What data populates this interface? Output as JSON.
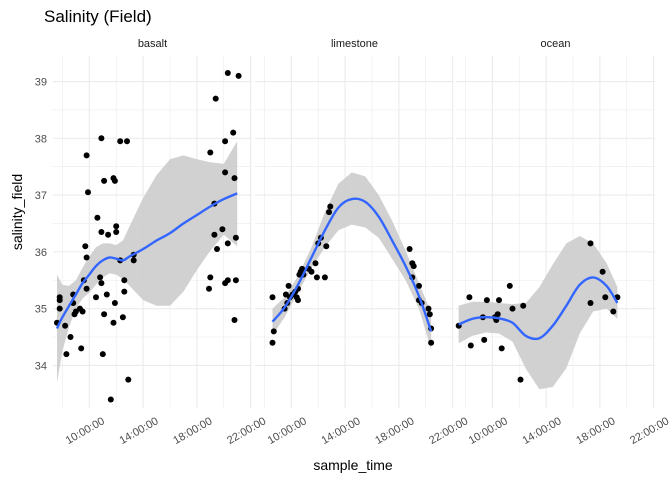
{
  "chart_data": {
    "type": "scatter",
    "title": "Salinity (Field)",
    "xlabel": "sample_time",
    "ylabel": "salinity_field",
    "facets": [
      "basalt",
      "limestone",
      "ocean"
    ],
    "x_ticks": [
      "10:00:00",
      "14:00:00",
      "18:00:00",
      "22:00:00"
    ],
    "x_tick_hours": [
      10,
      14,
      18,
      22
    ],
    "x_range_hours": [
      7.3,
      22.1
    ],
    "y_ticks": [
      34,
      35,
      36,
      37,
      38,
      39
    ],
    "ylim": [
      33.25,
      39.45
    ],
    "grid": true,
    "smooth": "loess with confidence band",
    "colors": {
      "points": "#000000",
      "smooth_line": "#3366FF",
      "band": "#CCCCCC",
      "grid": "#EBEBEB"
    },
    "panels": [
      {
        "name": "basalt",
        "points": [
          [
            7.6,
            34.75
          ],
          [
            7.8,
            35.2
          ],
          [
            7.8,
            35.0
          ],
          [
            7.8,
            35.15
          ],
          [
            8.2,
            34.7
          ],
          [
            8.6,
            34.5
          ],
          [
            8.3,
            34.2
          ],
          [
            8.8,
            35.25
          ],
          [
            8.8,
            35.1
          ],
          [
            8.9,
            34.9
          ],
          [
            9.0,
            34.95
          ],
          [
            9.3,
            35.0
          ],
          [
            9.4,
            34.3
          ],
          [
            9.5,
            34.95
          ],
          [
            9.6,
            35.5
          ],
          [
            9.8,
            35.35
          ],
          [
            9.7,
            36.1
          ],
          [
            9.8,
            35.9
          ],
          [
            9.8,
            37.7
          ],
          [
            9.9,
            37.05
          ],
          [
            10.5,
            35.2
          ],
          [
            10.6,
            36.6
          ],
          [
            10.8,
            35.55
          ],
          [
            10.9,
            35.45
          ],
          [
            10.9,
            36.35
          ],
          [
            10.9,
            38.0
          ],
          [
            11.1,
            37.25
          ],
          [
            11.3,
            35.25
          ],
          [
            11.4,
            36.3
          ],
          [
            11.1,
            34.9
          ],
          [
            11.0,
            34.2
          ],
          [
            11.8,
            37.3
          ],
          [
            11.9,
            37.25
          ],
          [
            12.0,
            36.45
          ],
          [
            12.0,
            36.35
          ],
          [
            11.9,
            35.1
          ],
          [
            11.6,
            33.4
          ],
          [
            11.8,
            34.75
          ],
          [
            12.3,
            37.95
          ],
          [
            12.3,
            35.85
          ],
          [
            12.6,
            35.3
          ],
          [
            12.6,
            35.5
          ],
          [
            12.5,
            34.85
          ],
          [
            12.9,
            33.75
          ],
          [
            12.8,
            37.95
          ],
          [
            13.3,
            35.85
          ],
          [
            13.3,
            35.95
          ],
          [
            18.9,
            35.35
          ],
          [
            19.0,
            35.55
          ],
          [
            19.0,
            37.75
          ],
          [
            19.3,
            36.85
          ],
          [
            19.3,
            36.3
          ],
          [
            19.5,
            36.05
          ],
          [
            19.4,
            38.7
          ],
          [
            19.9,
            36.4
          ],
          [
            20.1,
            37.4
          ],
          [
            20.1,
            37.95
          ],
          [
            20.1,
            35.45
          ],
          [
            20.3,
            39.15
          ],
          [
            20.3,
            36.15
          ],
          [
            20.3,
            35.5
          ],
          [
            20.7,
            38.1
          ],
          [
            20.8,
            37.3
          ],
          [
            20.9,
            36.25
          ],
          [
            20.9,
            35.5
          ],
          [
            21.1,
            39.1
          ],
          [
            20.8,
            34.8
          ]
        ],
        "smooth": [
          [
            7.6,
            34.65
          ],
          [
            8.0,
            34.85
          ],
          [
            8.5,
            35.05
          ],
          [
            9.0,
            35.25
          ],
          [
            9.5,
            35.45
          ],
          [
            10.0,
            35.6
          ],
          [
            10.5,
            35.75
          ],
          [
            11.0,
            35.85
          ],
          [
            11.5,
            35.9
          ],
          [
            12.0,
            35.88
          ],
          [
            12.5,
            35.85
          ],
          [
            13.0,
            35.92
          ],
          [
            14.0,
            36.05
          ],
          [
            15.0,
            36.2
          ],
          [
            16.0,
            36.33
          ],
          [
            17.0,
            36.5
          ],
          [
            18.0,
            36.65
          ],
          [
            19.0,
            36.8
          ],
          [
            20.0,
            36.93
          ],
          [
            21.0,
            37.03
          ]
        ],
        "band_upper": [
          [
            7.6,
            35.6
          ],
          [
            8.0,
            35.42
          ],
          [
            8.5,
            35.4
          ],
          [
            9.0,
            35.5
          ],
          [
            9.5,
            35.72
          ],
          [
            10.0,
            35.92
          ],
          [
            10.5,
            36.08
          ],
          [
            11.0,
            36.15
          ],
          [
            11.5,
            36.15
          ],
          [
            12.0,
            36.12
          ],
          [
            12.5,
            36.2
          ],
          [
            13.0,
            36.45
          ],
          [
            14.0,
            36.95
          ],
          [
            15.0,
            37.35
          ],
          [
            16.0,
            37.63
          ],
          [
            17.0,
            37.7
          ],
          [
            18.0,
            37.63
          ],
          [
            19.0,
            37.58
          ],
          [
            20.0,
            37.55
          ],
          [
            21.0,
            37.95
          ]
        ],
        "band_lower": [
          [
            7.6,
            33.7
          ],
          [
            8.0,
            34.25
          ],
          [
            8.5,
            34.68
          ],
          [
            9.0,
            35.0
          ],
          [
            9.5,
            35.18
          ],
          [
            10.0,
            35.28
          ],
          [
            10.5,
            35.42
          ],
          [
            11.0,
            35.55
          ],
          [
            11.5,
            35.62
          ],
          [
            12.0,
            35.6
          ],
          [
            12.5,
            35.52
          ],
          [
            13.0,
            35.4
          ],
          [
            14.0,
            35.15
          ],
          [
            15.0,
            35.05
          ],
          [
            16.0,
            35.05
          ],
          [
            17.0,
            35.3
          ],
          [
            18.0,
            35.68
          ],
          [
            19.0,
            36.02
          ],
          [
            20.0,
            36.3
          ],
          [
            21.0,
            36.1
          ]
        ]
      },
      {
        "name": "limestone",
        "points": [
          [
            8.6,
            35.2
          ],
          [
            8.6,
            34.4
          ],
          [
            8.7,
            34.6
          ],
          [
            9.5,
            35.0
          ],
          [
            9.6,
            35.25
          ],
          [
            9.7,
            35.1
          ],
          [
            9.8,
            35.4
          ],
          [
            9.9,
            35.2
          ],
          [
            10.1,
            35.25
          ],
          [
            10.3,
            35.3
          ],
          [
            10.4,
            35.2
          ],
          [
            10.5,
            35.15
          ],
          [
            10.5,
            35.35
          ],
          [
            10.6,
            35.6
          ],
          [
            10.7,
            35.65
          ],
          [
            10.8,
            35.7
          ],
          [
            10.9,
            35.6
          ],
          [
            11.3,
            35.7
          ],
          [
            11.5,
            35.65
          ],
          [
            11.9,
            35.55
          ],
          [
            11.8,
            35.8
          ],
          [
            12.0,
            36.15
          ],
          [
            12.2,
            36.25
          ],
          [
            12.6,
            36.1
          ],
          [
            12.8,
            36.7
          ],
          [
            12.9,
            36.8
          ],
          [
            12.5,
            35.55
          ],
          [
            18.8,
            36.05
          ],
          [
            19.0,
            35.55
          ],
          [
            19.0,
            35.8
          ],
          [
            19.1,
            35.75
          ],
          [
            19.5,
            35.4
          ],
          [
            19.5,
            35.15
          ],
          [
            19.7,
            35.1
          ],
          [
            20.2,
            35.0
          ],
          [
            20.3,
            34.9
          ],
          [
            20.4,
            34.65
          ],
          [
            20.4,
            34.4
          ]
        ],
        "smooth": [
          [
            8.6,
            34.77
          ],
          [
            9.5,
            35.02
          ],
          [
            10.5,
            35.42
          ],
          [
            11.5,
            35.9
          ],
          [
            12.5,
            36.38
          ],
          [
            13.5,
            36.78
          ],
          [
            14.5,
            36.93
          ],
          [
            15.5,
            36.88
          ],
          [
            16.5,
            36.62
          ],
          [
            17.5,
            36.2
          ],
          [
            18.5,
            35.75
          ],
          [
            19.5,
            35.22
          ],
          [
            20.4,
            34.6
          ]
        ],
        "band_upper": [
          [
            8.6,
            35.0
          ],
          [
            9.5,
            35.2
          ],
          [
            10.5,
            35.57
          ],
          [
            11.5,
            36.08
          ],
          [
            12.5,
            36.7
          ],
          [
            13.5,
            37.2
          ],
          [
            14.5,
            37.4
          ],
          [
            15.5,
            37.33
          ],
          [
            16.5,
            37.0
          ],
          [
            17.5,
            36.55
          ],
          [
            18.5,
            36.02
          ],
          [
            19.5,
            35.45
          ],
          [
            20.4,
            34.93
          ]
        ],
        "band_lower": [
          [
            8.6,
            34.53
          ],
          [
            9.5,
            34.85
          ],
          [
            10.5,
            35.28
          ],
          [
            11.5,
            35.72
          ],
          [
            12.5,
            36.08
          ],
          [
            13.5,
            36.38
          ],
          [
            14.5,
            36.48
          ],
          [
            15.5,
            36.43
          ],
          [
            16.5,
            36.25
          ],
          [
            17.5,
            35.88
          ],
          [
            18.5,
            35.5
          ],
          [
            19.5,
            35.0
          ],
          [
            20.4,
            34.28
          ]
        ]
      },
      {
        "name": "ocean",
        "points": [
          [
            7.5,
            34.7
          ],
          [
            8.3,
            35.2
          ],
          [
            8.4,
            34.35
          ],
          [
            9.3,
            34.85
          ],
          [
            9.4,
            34.45
          ],
          [
            9.6,
            35.15
          ],
          [
            10.2,
            34.85
          ],
          [
            10.3,
            34.8
          ],
          [
            10.4,
            34.9
          ],
          [
            10.5,
            35.15
          ],
          [
            10.7,
            34.3
          ],
          [
            11.3,
            35.4
          ],
          [
            11.5,
            35.0
          ],
          [
            12.1,
            33.75
          ],
          [
            12.3,
            35.05
          ],
          [
            17.3,
            36.15
          ],
          [
            17.3,
            35.1
          ],
          [
            18.2,
            35.65
          ],
          [
            18.4,
            35.2
          ],
          [
            19.0,
            34.95
          ],
          [
            19.3,
            35.2
          ]
        ],
        "smooth": [
          [
            7.5,
            34.72
          ],
          [
            8.5,
            34.82
          ],
          [
            9.5,
            34.85
          ],
          [
            10.5,
            34.83
          ],
          [
            11.5,
            34.75
          ],
          [
            12.5,
            34.52
          ],
          [
            13.5,
            34.48
          ],
          [
            14.5,
            34.7
          ],
          [
            15.5,
            35.05
          ],
          [
            16.5,
            35.42
          ],
          [
            17.5,
            35.55
          ],
          [
            18.5,
            35.4
          ],
          [
            19.3,
            35.1
          ]
        ],
        "band_upper": [
          [
            7.5,
            35.05
          ],
          [
            8.5,
            35.12
          ],
          [
            9.5,
            35.12
          ],
          [
            10.5,
            35.1
          ],
          [
            11.5,
            35.08
          ],
          [
            12.5,
            35.1
          ],
          [
            13.5,
            35.38
          ],
          [
            14.5,
            35.78
          ],
          [
            15.5,
            36.15
          ],
          [
            16.5,
            36.28
          ],
          [
            17.5,
            36.15
          ],
          [
            18.5,
            35.8
          ],
          [
            19.3,
            35.38
          ]
        ],
        "band_lower": [
          [
            7.5,
            34.39
          ],
          [
            8.5,
            34.52
          ],
          [
            9.5,
            34.58
          ],
          [
            10.5,
            34.56
          ],
          [
            11.5,
            34.42
          ],
          [
            12.5,
            33.94
          ],
          [
            13.5,
            33.58
          ],
          [
            14.5,
            33.62
          ],
          [
            15.5,
            33.95
          ],
          [
            16.5,
            34.56
          ],
          [
            17.5,
            34.95
          ],
          [
            18.5,
            35.0
          ],
          [
            19.3,
            34.82
          ]
        ]
      }
    ]
  }
}
